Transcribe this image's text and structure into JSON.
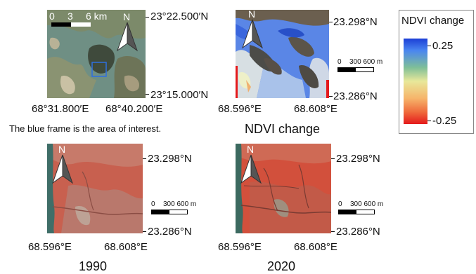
{
  "panels": {
    "overview": {
      "lat_top": "23°22.500′N",
      "lat_bottom": "23°15.000′N",
      "lon_left": "68°31.800′E",
      "lon_right": "68°40.200′E",
      "scale": {
        "t0": "0",
        "t1": "3",
        "t2": "6 km"
      },
      "north": "N",
      "caption": "The blue frame is the area of interest."
    },
    "ndvi_change": {
      "lat_top": "23.298°N",
      "lat_bottom": "23.286°N",
      "lon_left": "68.596°E",
      "lon_right": "68.608°E",
      "scale": {
        "t0": "0",
        "t1": "300 600 m"
      },
      "north": "N",
      "caption": "NDVI change"
    },
    "y1990": {
      "lat_top": "23.298°N",
      "lat_bottom": "23.286°N",
      "lon_left": "68.596°E",
      "lon_right": "68.608°E",
      "scale": {
        "t0": "0",
        "t1": "300 600 m"
      },
      "north": "N",
      "caption": "1990"
    },
    "y2020": {
      "lat_top": "23.298°N",
      "lat_bottom": "23.286°N",
      "lon_left": "68.596°E",
      "lon_right": "68.608°E",
      "scale": {
        "t0": "0",
        "t1": "300 600 m"
      },
      "north": "N",
      "caption": "2020"
    }
  },
  "legend": {
    "title": "NDVI change",
    "max_label": "0.25",
    "min_label": "-0.25",
    "colors": [
      "#1c3fd6",
      "#7fbf98",
      "#e8e89a",
      "#ef6a3c",
      "#e41a1c"
    ]
  }
}
